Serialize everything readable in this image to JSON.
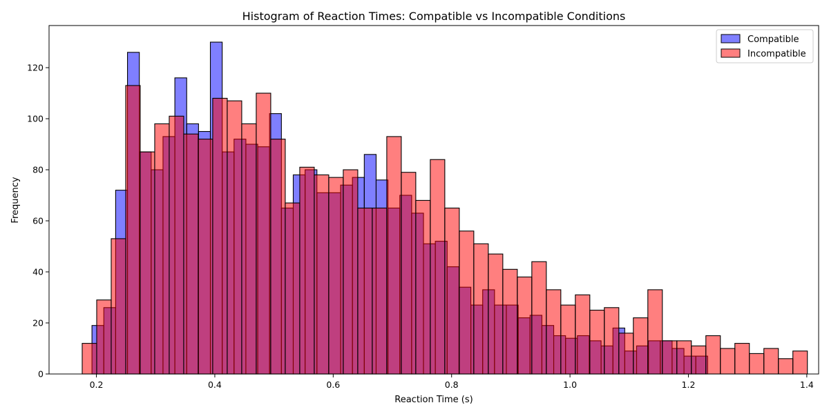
{
  "chart_data": {
    "type": "bar",
    "title": "Histogram of Reaction Times: Compatible vs Incompatible Conditions",
    "xlabel": "Reaction Time (s)",
    "ylabel": "Frequency",
    "xlim": [
      0.12,
      1.42
    ],
    "ylim": [
      0,
      136.5
    ],
    "xticks": [
      0.2,
      0.4,
      0.6,
      0.8,
      1.0,
      1.2,
      1.4
    ],
    "xtick_labels": [
      "0.2",
      "0.4",
      "0.6",
      "0.8",
      "1.0",
      "1.2",
      "1.4"
    ],
    "yticks": [
      0,
      20,
      40,
      60,
      80,
      100,
      120
    ],
    "ytick_labels": [
      "0",
      "20",
      "40",
      "60",
      "80",
      "100",
      "120"
    ],
    "grid": false,
    "legend": "top-right",
    "series": [
      {
        "name": "Compatible",
        "color": "#0000ff",
        "bin_start": 0.1925,
        "bin_width": 0.02,
        "values": [
          19,
          26,
          72,
          126,
          87,
          80,
          93,
          116,
          98,
          95,
          130,
          87,
          92,
          90,
          89,
          102,
          65,
          78,
          80,
          71,
          71,
          74,
          77,
          86,
          76,
          65,
          70,
          63,
          51,
          52,
          42,
          34,
          27,
          33,
          27,
          27,
          22,
          23,
          19,
          15,
          14,
          15,
          13,
          11,
          18,
          9,
          11,
          13,
          13,
          10,
          7,
          7
        ]
      },
      {
        "name": "Incompatible",
        "color": "#ff0000",
        "bin_start": 0.176,
        "bin_width": 0.0245,
        "values": [
          12,
          29,
          53,
          113,
          87,
          98,
          101,
          94,
          92,
          108,
          107,
          98,
          110,
          92,
          67,
          81,
          78,
          77,
          80,
          65,
          65,
          93,
          79,
          68,
          84,
          65,
          56,
          51,
          47,
          41,
          38,
          44,
          33,
          27,
          31,
          25,
          26,
          16,
          22,
          33,
          13,
          13,
          11,
          15,
          10,
          12,
          8,
          10,
          6,
          9
        ]
      }
    ]
  }
}
